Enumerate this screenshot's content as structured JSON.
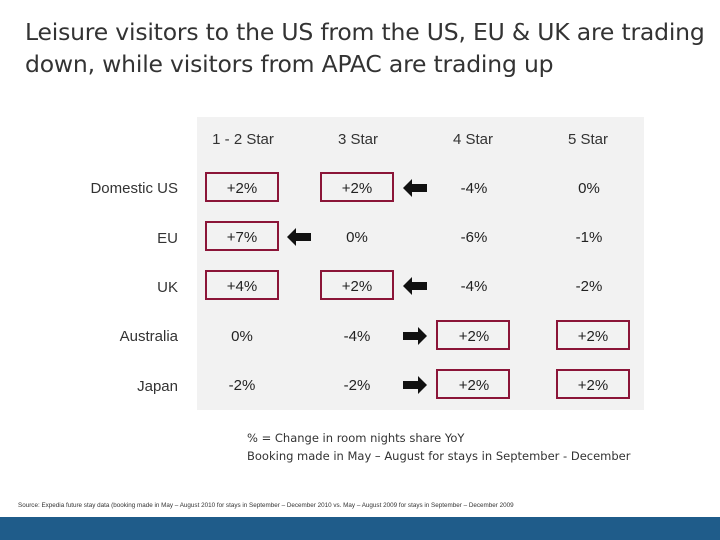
{
  "title": {
    "line1": "Leisure visitors to the US from the US, EU & UK are trading",
    "line2": "down, while visitors from APAC are trading up"
  },
  "columns": [
    "1 - 2 Star",
    "3 Star",
    "4 Star",
    "5 Star"
  ],
  "rows": [
    {
      "label": "Domestic US",
      "values": [
        "+2%",
        "+2%",
        "-4%",
        "0%"
      ]
    },
    {
      "label": "EU",
      "values": [
        "+7%",
        "0%",
        "-6%",
        "-1%"
      ]
    },
    {
      "label": "UK",
      "values": [
        "+4%",
        "+2%",
        "-4%",
        "-2%"
      ]
    },
    {
      "label": "Australia",
      "values": [
        "0%",
        "-4%",
        "+2%",
        "+2%"
      ]
    },
    {
      "label": "Japan",
      "values": [
        "-2%",
        "-2%",
        "+2%",
        "+2%"
      ]
    }
  ],
  "notes": {
    "line1": "% = Change in room nights share YoY",
    "line2": "Booking made in May – August for stays in September - December"
  },
  "source": "Source: Expedia future stay data (booking made in May – August 2010 for stays in September – December 2010 vs. May – August 2009 for stays in September – December 2009",
  "colors": {
    "highlight_border": "#8b1538",
    "arrow": "#111111",
    "panel": "#f2f2f2",
    "footer_bar": "#1f5c8a"
  }
}
